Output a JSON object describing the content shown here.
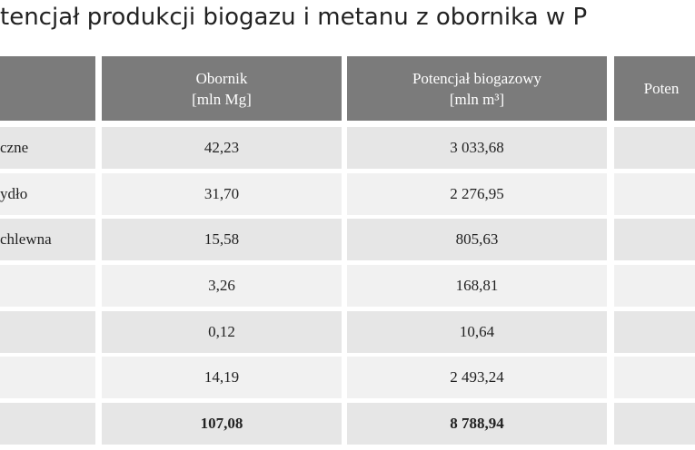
{
  "title": "tencjał produkcji biogazu i metanu z obornika w P",
  "table": {
    "header": [
      {
        "lines": [
          "Obornik",
          "[mln Mg]"
        ]
      },
      {
        "lines": [
          "Potencjał biogazowy",
          "[mln m³]"
        ]
      },
      {
        "lines": [
          "Poten"
        ]
      }
    ],
    "rows": [
      {
        "label": "czne",
        "cells": [
          "42,23",
          "3 033,68"
        ]
      },
      {
        "label": "ydło",
        "cells": [
          "31,70",
          "2 276,95"
        ]
      },
      {
        "label": "chlewna",
        "cells": [
          "15,58",
          "805,63"
        ]
      },
      {
        "cells": [
          "3,26",
          "168,81"
        ]
      },
      {
        "cells": [
          "0,12",
          "10,64"
        ]
      },
      {
        "cells": [
          "14,19",
          "2 493,24"
        ]
      },
      {
        "cells": [
          "107,08",
          "8 788,94"
        ],
        "bold": true
      }
    ]
  }
}
